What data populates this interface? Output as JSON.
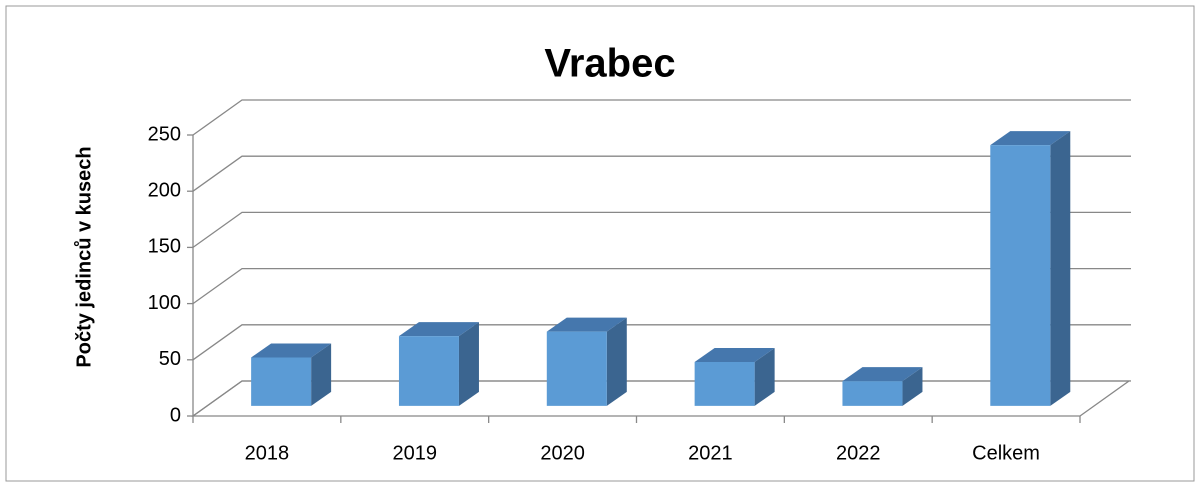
{
  "chart_data": {
    "type": "bar3d",
    "title": "Vrabec",
    "y_label": "Počty jedinců v kusech",
    "categories": [
      "2018",
      "2019",
      "2020",
      "2021",
      "2022",
      "Celkem"
    ],
    "values": [
      43,
      62,
      66,
      39,
      22,
      232
    ],
    "color": "#5b9bd5",
    "ylim": [
      0,
      250
    ],
    "yticks": [
      0,
      50,
      100,
      150,
      200,
      250
    ],
    "grid": true
  }
}
